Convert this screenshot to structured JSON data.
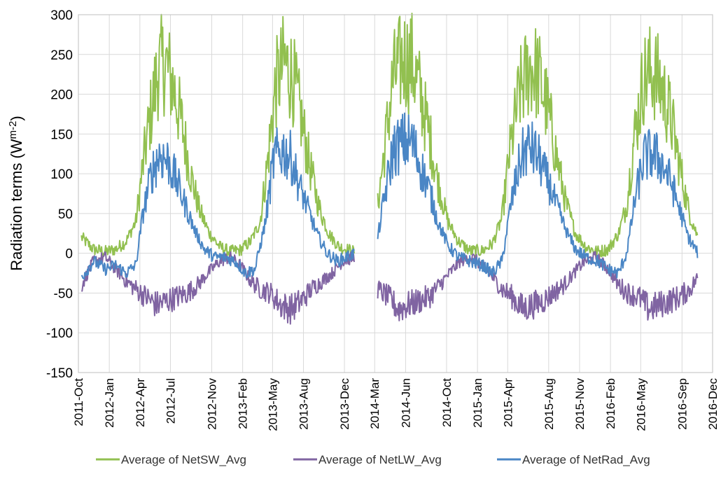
{
  "chart_data": {
    "type": "line",
    "title": "",
    "xlabel": "",
    "ylabel": {
      "base": "Radiation terms (W",
      "sup": "m-2",
      "end": ")"
    },
    "ylim": [
      -150,
      300
    ],
    "yticks": [
      -150,
      -100,
      -50,
      0,
      50,
      100,
      150,
      200,
      250,
      300
    ],
    "xlim": [
      "2011-10-01",
      "2016-12-01"
    ],
    "xticks": [
      "2011-Oct",
      "2012-Jan",
      "2012-Apr",
      "2012-Jul",
      "2012-Nov",
      "2013-Feb",
      "2013-May",
      "2013-Aug",
      "2013-Dec",
      "2014-Mar",
      "2014-Jun",
      "2014-Oct",
      "2015-Jan",
      "2015-Apr",
      "2015-Aug",
      "2015-Nov",
      "2016-Feb",
      "2016-May",
      "2016-Sep",
      "2016-Dec"
    ],
    "xtick_dates": [
      "2011-10-01",
      "2012-01-01",
      "2012-04-01",
      "2012-07-01",
      "2012-11-01",
      "2013-02-01",
      "2013-05-01",
      "2013-08-01",
      "2013-12-01",
      "2014-03-01",
      "2014-06-01",
      "2014-10-01",
      "2015-01-01",
      "2015-04-01",
      "2015-08-01",
      "2015-11-01",
      "2016-02-01",
      "2016-05-01",
      "2016-09-01",
      "2016-12-01"
    ],
    "grid": true,
    "legend": "bottom",
    "data_segments": [
      {
        "start": "2011-10-10",
        "end": "2013-12-31"
      },
      {
        "start": "2014-03-10",
        "end": "2016-10-18"
      }
    ],
    "series": [
      {
        "name": "Average of NetSW_Avg",
        "color": "#92c050",
        "points": [
          [
            "2011-10-10",
            20
          ],
          [
            "2011-11-15",
            5
          ],
          [
            "2011-12-20",
            2
          ],
          [
            "2012-01-20",
            5
          ],
          [
            "2012-02-20",
            15
          ],
          [
            "2012-03-20",
            40
          ],
          [
            "2012-04-10",
            110
          ],
          [
            "2012-05-01",
            170
          ],
          [
            "2012-05-25",
            230
          ],
          [
            "2012-06-15",
            240
          ],
          [
            "2012-07-10",
            210
          ],
          [
            "2012-08-05",
            160
          ],
          [
            "2012-08-30",
            100
          ],
          [
            "2012-09-25",
            55
          ],
          [
            "2012-10-25",
            25
          ],
          [
            "2012-11-25",
            8
          ],
          [
            "2012-12-25",
            2
          ],
          [
            "2013-01-25",
            4
          ],
          [
            "2013-02-25",
            15
          ],
          [
            "2013-03-25",
            40
          ],
          [
            "2013-04-15",
            110
          ],
          [
            "2013-05-10",
            210
          ],
          [
            "2013-06-05",
            240
          ],
          [
            "2013-07-01",
            220
          ],
          [
            "2013-07-25",
            170
          ],
          [
            "2013-08-20",
            110
          ],
          [
            "2013-09-15",
            60
          ],
          [
            "2013-10-15",
            25
          ],
          [
            "2013-11-15",
            8
          ],
          [
            "2013-12-31",
            2
          ],
          [
            "2014-03-10",
            60
          ],
          [
            "2014-03-30",
            130
          ],
          [
            "2014-04-25",
            220
          ],
          [
            "2014-05-25",
            245
          ],
          [
            "2014-06-20",
            240
          ],
          [
            "2014-07-15",
            200
          ],
          [
            "2014-08-10",
            150
          ],
          [
            "2014-09-05",
            90
          ],
          [
            "2014-10-05",
            40
          ],
          [
            "2014-11-05",
            15
          ],
          [
            "2014-12-10",
            3
          ],
          [
            "2015-01-15",
            3
          ],
          [
            "2015-02-15",
            12
          ],
          [
            "2015-03-15",
            45
          ],
          [
            "2015-04-05",
            120
          ],
          [
            "2015-05-05",
            200
          ],
          [
            "2015-06-05",
            235
          ],
          [
            "2015-07-01",
            225
          ],
          [
            "2015-07-30",
            180
          ],
          [
            "2015-08-25",
            120
          ],
          [
            "2015-09-20",
            65
          ],
          [
            "2015-10-20",
            25
          ],
          [
            "2015-11-20",
            8
          ],
          [
            "2015-12-25",
            2
          ],
          [
            "2016-01-25",
            5
          ],
          [
            "2016-02-25",
            25
          ],
          [
            "2016-03-20",
            60
          ],
          [
            "2016-04-10",
            140
          ],
          [
            "2016-05-10",
            220
          ],
          [
            "2016-06-05",
            230
          ],
          [
            "2016-07-01",
            210
          ],
          [
            "2016-07-30",
            170
          ],
          [
            "2016-08-25",
            110
          ],
          [
            "2016-09-20",
            55
          ],
          [
            "2016-10-18",
            20
          ]
        ]
      },
      {
        "name": "Average of NetLW_Avg",
        "color": "#8064a2",
        "points": [
          [
            "2011-10-10",
            -40
          ],
          [
            "2011-11-15",
            -10
          ],
          [
            "2011-12-20",
            -5
          ],
          [
            "2012-01-20",
            -20
          ],
          [
            "2012-02-20",
            -35
          ],
          [
            "2012-03-20",
            -45
          ],
          [
            "2012-04-20",
            -55
          ],
          [
            "2012-05-20",
            -65
          ],
          [
            "2012-06-20",
            -60
          ],
          [
            "2012-07-20",
            -55
          ],
          [
            "2012-08-20",
            -50
          ],
          [
            "2012-09-20",
            -40
          ],
          [
            "2012-10-20",
            -25
          ],
          [
            "2012-11-25",
            -10
          ],
          [
            "2012-12-25",
            -5
          ],
          [
            "2013-01-25",
            -15
          ],
          [
            "2013-02-25",
            -35
          ],
          [
            "2013-03-25",
            -45
          ],
          [
            "2013-04-25",
            -50
          ],
          [
            "2013-05-25",
            -65
          ],
          [
            "2013-06-25",
            -70
          ],
          [
            "2013-07-25",
            -60
          ],
          [
            "2013-08-25",
            -45
          ],
          [
            "2013-09-25",
            -35
          ],
          [
            "2013-10-25",
            -25
          ],
          [
            "2013-11-25",
            -10
          ],
          [
            "2013-12-31",
            -5
          ],
          [
            "2014-03-10",
            -45
          ],
          [
            "2014-04-10",
            -55
          ],
          [
            "2014-05-10",
            -70
          ],
          [
            "2014-06-10",
            -65
          ],
          [
            "2014-07-10",
            -60
          ],
          [
            "2014-08-10",
            -55
          ],
          [
            "2014-09-10",
            -40
          ],
          [
            "2014-10-10",
            -25
          ],
          [
            "2014-11-10",
            -10
          ],
          [
            "2014-12-15",
            -5
          ],
          [
            "2015-01-15",
            -15
          ],
          [
            "2015-02-15",
            -30
          ],
          [
            "2015-03-15",
            -45
          ],
          [
            "2015-04-15",
            -55
          ],
          [
            "2015-05-15",
            -70
          ],
          [
            "2015-06-15",
            -65
          ],
          [
            "2015-07-15",
            -60
          ],
          [
            "2015-08-15",
            -50
          ],
          [
            "2015-09-15",
            -40
          ],
          [
            "2015-10-15",
            -25
          ],
          [
            "2015-11-15",
            -10
          ],
          [
            "2015-12-20",
            -5
          ],
          [
            "2016-01-25",
            -20
          ],
          [
            "2016-02-25",
            -40
          ],
          [
            "2016-03-25",
            -50
          ],
          [
            "2016-04-25",
            -55
          ],
          [
            "2016-05-25",
            -70
          ],
          [
            "2016-06-25",
            -65
          ],
          [
            "2016-07-25",
            -60
          ],
          [
            "2016-08-25",
            -55
          ],
          [
            "2016-09-25",
            -45
          ],
          [
            "2016-10-18",
            -30
          ]
        ]
      },
      {
        "name": "Average of NetRad_Avg",
        "color": "#4a86c5",
        "points": [
          [
            "2011-10-10",
            -30
          ],
          [
            "2011-11-15",
            -10
          ],
          [
            "2011-12-20",
            -20
          ],
          [
            "2012-01-20",
            -15
          ],
          [
            "2012-02-20",
            -25
          ],
          [
            "2012-03-20",
            -15
          ],
          [
            "2012-04-10",
            50
          ],
          [
            "2012-05-05",
            100
          ],
          [
            "2012-05-30",
            125
          ],
          [
            "2012-06-25",
            115
          ],
          [
            "2012-07-20",
            90
          ],
          [
            "2012-08-15",
            60
          ],
          [
            "2012-09-10",
            30
          ],
          [
            "2012-10-10",
            5
          ],
          [
            "2012-11-10",
            -5
          ],
          [
            "2012-12-10",
            -5
          ],
          [
            "2013-01-10",
            -10
          ],
          [
            "2013-02-10",
            -25
          ],
          [
            "2013-03-10",
            -20
          ],
          [
            "2013-04-10",
            40
          ],
          [
            "2013-05-05",
            120
          ],
          [
            "2013-05-30",
            130
          ],
          [
            "2013-06-25",
            120
          ],
          [
            "2013-07-20",
            85
          ],
          [
            "2013-08-15",
            55
          ],
          [
            "2013-09-10",
            25
          ],
          [
            "2013-10-10",
            0
          ],
          [
            "2013-11-10",
            -10
          ],
          [
            "2013-12-31",
            0
          ],
          [
            "2014-03-10",
            20
          ],
          [
            "2014-03-30",
            70
          ],
          [
            "2014-04-25",
            130
          ],
          [
            "2014-05-25",
            140
          ],
          [
            "2014-06-20",
            140
          ],
          [
            "2014-07-15",
            110
          ],
          [
            "2014-08-10",
            80
          ],
          [
            "2014-09-05",
            40
          ],
          [
            "2014-10-05",
            10
          ],
          [
            "2014-11-05",
            -5
          ],
          [
            "2014-12-10",
            -10
          ],
          [
            "2015-01-15",
            -15
          ],
          [
            "2015-02-15",
            -25
          ],
          [
            "2015-03-15",
            -10
          ],
          [
            "2015-04-10",
            60
          ],
          [
            "2015-05-10",
            120
          ],
          [
            "2015-06-05",
            135
          ],
          [
            "2015-07-01",
            120
          ],
          [
            "2015-07-30",
            90
          ],
          [
            "2015-08-25",
            60
          ],
          [
            "2015-09-20",
            30
          ],
          [
            "2015-10-20",
            5
          ],
          [
            "2015-11-20",
            -5
          ],
          [
            "2015-12-25",
            -10
          ],
          [
            "2016-01-25",
            -20
          ],
          [
            "2016-02-25",
            -25
          ],
          [
            "2016-03-20",
            0
          ],
          [
            "2016-04-15",
            70
          ],
          [
            "2016-05-10",
            120
          ],
          [
            "2016-06-05",
            125
          ],
          [
            "2016-07-01",
            115
          ],
          [
            "2016-07-30",
            90
          ],
          [
            "2016-08-25",
            55
          ],
          [
            "2016-09-20",
            20
          ],
          [
            "2016-10-18",
            0
          ]
        ]
      }
    ]
  }
}
